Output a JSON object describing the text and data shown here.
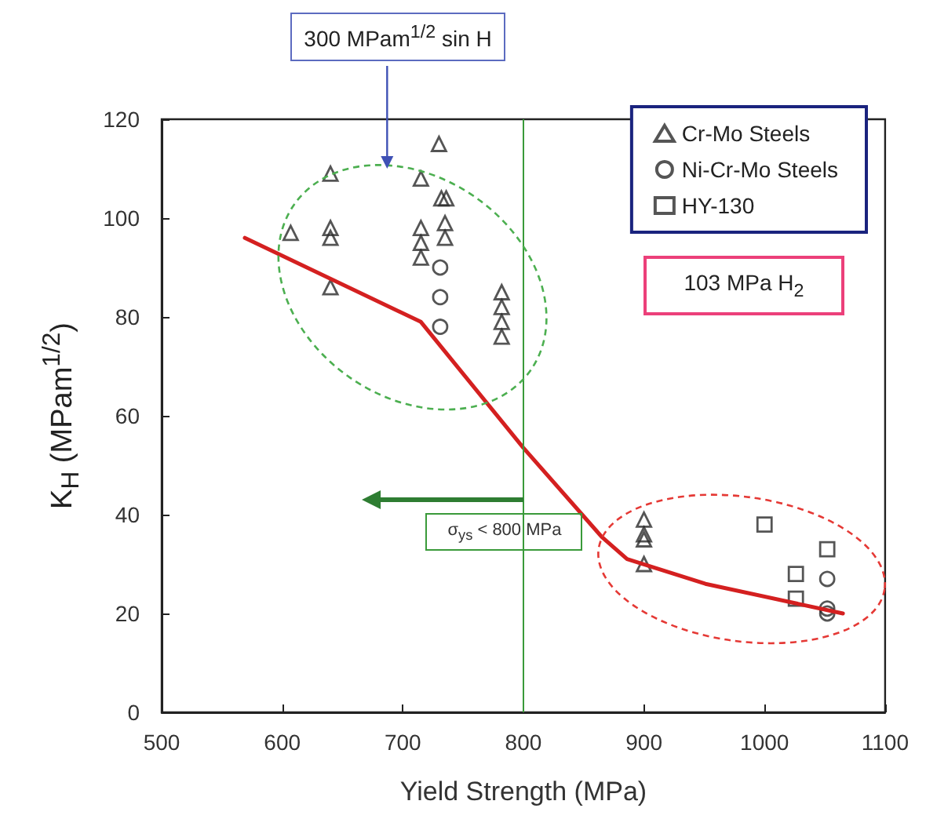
{
  "chart_data": {
    "type": "scatter",
    "xlabel": "Yield Strength (MPa)",
    "ylabel": "K$_{H}$ (MPam$^{1/2}$)",
    "xlim": [
      500,
      1100
    ],
    "xticks": [
      500,
      600,
      700,
      800,
      900,
      1000,
      1100
    ],
    "ylim": [
      0,
      120
    ],
    "yticks": [
      0,
      20,
      40,
      60,
      80,
      100,
      120
    ],
    "grid": false,
    "legend": "top right",
    "series": [
      {
        "name": "Cr-Mo Steels",
        "color": "#2b2b2b",
        "marker": "triangle",
        "x": [
          730,
          640,
          715,
          732,
          736,
          607,
          640,
          640,
          715,
          715,
          715,
          735,
          735,
          640,
          782,
          782,
          782,
          782,
          900,
          900,
          900,
          900
        ],
        "values": [
          115,
          109,
          108,
          104,
          104,
          97,
          98,
          96,
          98,
          95,
          92,
          99,
          96,
          86,
          85,
          82,
          79,
          76,
          39,
          36,
          35,
          30
        ]
      },
      {
        "name": "Ni-Cr-Mo Steels",
        "color": "#2b2b2b",
        "marker": "circle",
        "x": [
          731,
          731,
          731,
          1052,
          1052,
          1052
        ],
        "values": [
          90,
          84,
          78,
          27,
          21,
          20
        ]
      },
      {
        "name": "HY-130",
        "color": "#2b2b2b",
        "marker": "square",
        "x": [
          1000,
          1052,
          1026,
          1026
        ],
        "values": [
          38,
          33,
          28,
          23
        ]
      },
      {
        "type": "line",
        "color": "#d42020",
        "marker": "none",
        "line_style": "solid",
        "x": [
          569,
          715,
          800,
          865,
          886,
          951,
          1065
        ],
        "values": [
          96,
          79,
          53.5,
          35.5,
          31,
          26,
          20
        ]
      }
    ],
    "ref_lines": [
      {
        "axis": "x",
        "value": 800,
        "label": "σ$_{ys}$ < 800 MPa",
        "color": "#3a9a3a"
      }
    ],
    "annotations": [
      "300 MPam$^{1/2}$ sin H",
      "103 MPa H$_{2}$"
    ]
  }
}
